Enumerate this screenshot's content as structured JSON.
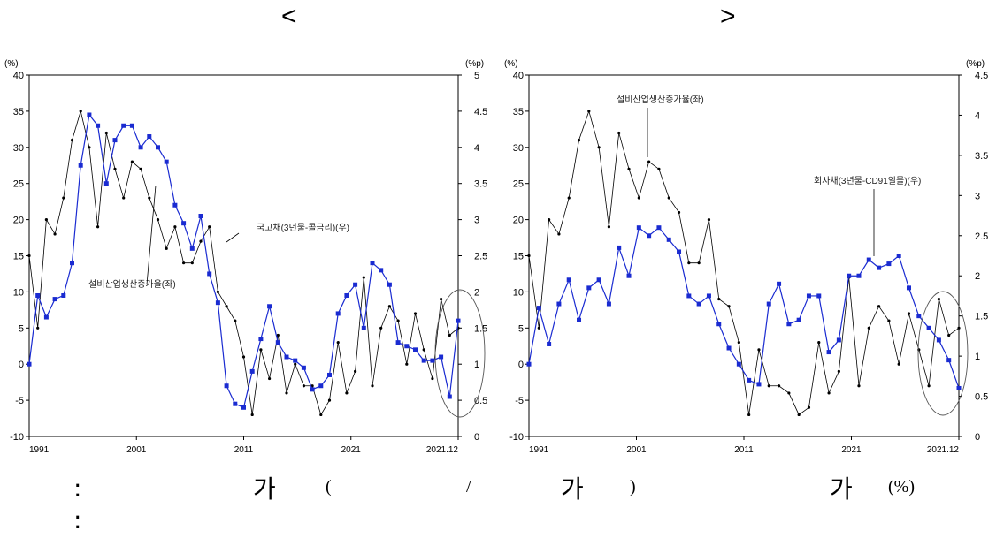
{
  "header": {
    "left_bracket": "<",
    "right_bracket": ">"
  },
  "caption": {
    "colon1": ":",
    "ga1": "가",
    "open_paren": "(",
    "slash": "/",
    "ga2": "가",
    "close_paren": ")",
    "ga3": "가",
    "unit": "(%)",
    "colon2": ":"
  },
  "chart_data": [
    {
      "type": "line",
      "y_left_unit": "(%)",
      "y_right_unit": "(%p)",
      "ylim_left": [
        -10,
        40
      ],
      "ylim_right": [
        0,
        5
      ],
      "yticks_left": [
        "40",
        "35",
        "30",
        "25",
        "20",
        "15",
        "10",
        "5",
        "0",
        "-5",
        "-10"
      ],
      "yticks_right": [
        "5",
        "4.5",
        "4",
        "3.5",
        "3",
        "2.5",
        "2",
        "1.5",
        "1",
        "0.5",
        "0"
      ],
      "xticks": [
        "1991",
        "2001",
        "2011",
        "2021",
        "2021.12"
      ],
      "annotations": [
        "국고채(3년물-콜금리)(우)",
        "설비산업생산증가율(좌)"
      ],
      "highlight": "ellipse around 2020-2022",
      "series": [
        {
          "axis": "left",
          "color": "#000000",
          "marker": "dot",
          "values": [
            15,
            5,
            20,
            18,
            23,
            31,
            35,
            30,
            19,
            32,
            27,
            23,
            28,
            27,
            23,
            20,
            16,
            19,
            14,
            14,
            17,
            19,
            10,
            8,
            6,
            1,
            -7,
            2,
            -2,
            4,
            -4,
            0,
            -3,
            -3,
            -7,
            -5,
            3,
            -4,
            -1,
            12,
            -3,
            5,
            8,
            6,
            0,
            7,
            2,
            -2,
            9,
            4,
            5
          ]
        },
        {
          "axis": "right",
          "color": "#1a2bd1",
          "marker": "square",
          "values": [
            1,
            1.95,
            1.65,
            1.9,
            1.95,
            2.4,
            3.75,
            4.45,
            4.3,
            3.5,
            4.1,
            4.3,
            4.3,
            4.0,
            4.15,
            4.0,
            3.8,
            3.2,
            2.95,
            2.6,
            3.05,
            2.25,
            1.85,
            0.7,
            0.45,
            0.4,
            0.9,
            1.35,
            1.8,
            1.3,
            1.1,
            1.05,
            0.95,
            0.65,
            0.7,
            0.85,
            1.7,
            1.95,
            2.1,
            1.5,
            2.4,
            2.3,
            2.1,
            1.3,
            1.25,
            1.2,
            1.05,
            1.05,
            1.1,
            0.55,
            1.6
          ]
        }
      ]
    },
    {
      "type": "line",
      "y_left_unit": "(%)",
      "y_right_unit": "(%p)",
      "ylim_left": [
        -10,
        40
      ],
      "ylim_right": [
        0,
        4.5
      ],
      "yticks_left": [
        "40",
        "35",
        "30",
        "25",
        "20",
        "15",
        "10",
        "5",
        "0",
        "-5",
        "-10"
      ],
      "yticks_right": [
        "4.5",
        "4",
        "3.5",
        "3",
        "2.5",
        "2",
        "1.5",
        "1",
        "0.5",
        "0"
      ],
      "xticks": [
        "1991",
        "2001",
        "2011",
        "2021",
        "2021.12"
      ],
      "annotations": [
        "설비산업생산증가율(좌)",
        "회사채(3년물-CD91일물)(우)"
      ],
      "highlight": "ellipse around 2020-2022",
      "series": [
        {
          "axis": "left",
          "color": "#000000",
          "marker": "dot",
          "values": [
            15,
            5,
            20,
            18,
            23,
            31,
            35,
            30,
            19,
            32,
            27,
            23,
            28,
            27,
            23,
            21,
            14,
            14,
            20,
            9,
            8,
            3,
            -7,
            2,
            -3,
            -3,
            -4,
            -7,
            -6,
            3,
            -4,
            -1,
            12,
            -3,
            5,
            8,
            6,
            0,
            7,
            2,
            -3,
            9,
            4,
            5
          ]
        },
        {
          "axis": "right",
          "color": "#1a2bd1",
          "marker": "square",
          "values": [
            0.9,
            1.6,
            1.15,
            1.65,
            1.95,
            1.45,
            1.85,
            1.95,
            1.65,
            2.35,
            2.0,
            2.6,
            2.5,
            2.6,
            2.45,
            2.3,
            1.75,
            1.65,
            1.75,
            1.4,
            1.1,
            0.9,
            0.7,
            0.65,
            1.65,
            1.9,
            1.4,
            1.45,
            1.75,
            1.75,
            1.05,
            1.2,
            2.0,
            2.0,
            2.2,
            2.1,
            2.15,
            2.25,
            1.85,
            1.5,
            1.35,
            1.2,
            0.95,
            0.6
          ]
        }
      ]
    }
  ]
}
